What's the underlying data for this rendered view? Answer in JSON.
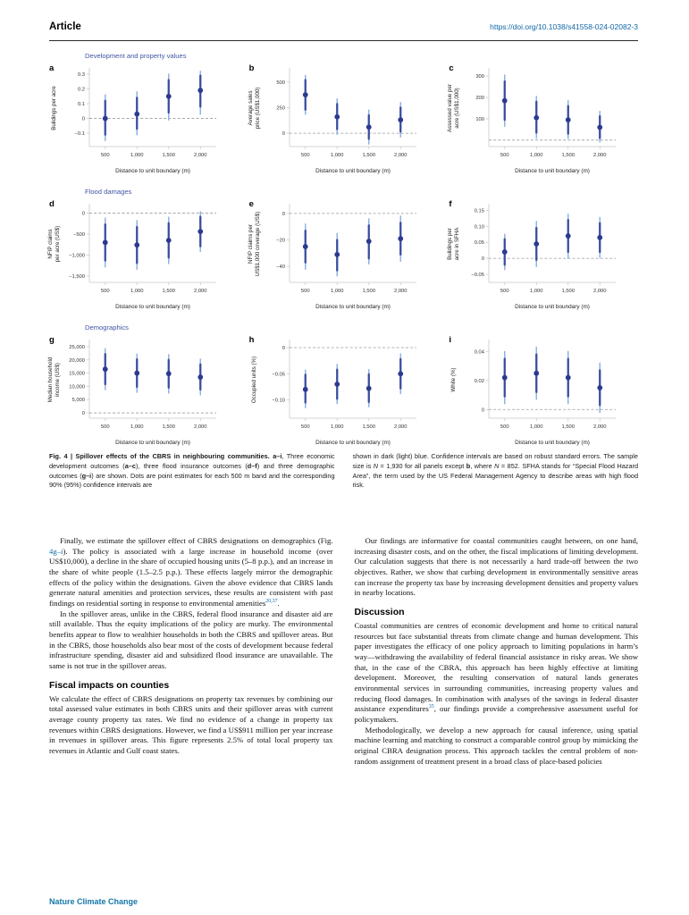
{
  "header": {
    "article_label": "Article",
    "doi": "https://doi.org/10.1038/s41558-024-02082-3"
  },
  "colors": {
    "dot": "#2b3a8f",
    "ci90": "#3a4d9f",
    "ci95": "#8fb3e2",
    "zero_line": "#9a9a9a",
    "axis": "#c9c9c9",
    "tick_text": "#333333",
    "label_text": "#222222",
    "group_title": "#4255a4",
    "link": "#1267a8",
    "footer": "#1578a8"
  },
  "figure": {
    "groups": [
      {
        "title": "Development and property values"
      },
      {
        "title": "Flood damages"
      },
      {
        "title": "Demographics"
      }
    ],
    "caption_left": {
      "lead": "Fig. 4 | Spillover effects of the CBRS in neighbouring communities. ",
      "b1": "a–i",
      "t1": ", Three economic development outcomes (",
      "b2": "a–c",
      "t2": "), three flood insurance outcomes (",
      "b3": "d–f",
      "t3": ") and three demographic outcomes (",
      "b4": "g–i",
      "t4": ") are shown. Dots are point estimates for each 500 m band and the corresponding 90% (95%) confidence intervals are"
    },
    "caption_right": {
      "t1": "shown in dark (light) blue. Confidence intervals are based on robust standard errors. The sample size is ",
      "i1": "N",
      "t2": " = 1,930 for all panels except ",
      "b1": "b",
      "t3": ", where ",
      "i2": "N",
      "t4": " = 852. SFHA stands for “Special Flood Hazard Area”, the term used by the US Federal Management Agency to describe areas with high flood risk."
    }
  },
  "chart_data": [
    {
      "panel": "a",
      "group": "Development and property values",
      "type": "scatter",
      "x": [
        500,
        1000,
        1500,
        2000
      ],
      "x_tick_labels": [
        "500",
        "1,000",
        "1,500",
        "2,000"
      ],
      "xlabel": "Distance to unit boundary (m)",
      "ylabel": [
        "Buildings per acre"
      ],
      "ylim": [
        -0.19,
        0.33
      ],
      "yticks": [
        -0.1,
        0,
        0.1,
        0.2,
        0.3
      ],
      "ytick_labels": [
        "−0.1",
        "0",
        "0.1",
        "0.2",
        "0.3"
      ],
      "estimates": [
        0.0,
        0.03,
        0.15,
        0.19
      ],
      "ci90": [
        [
          -0.11,
          0.12
        ],
        [
          -0.07,
          0.14
        ],
        [
          0.04,
          0.26
        ],
        [
          0.08,
          0.29
        ]
      ],
      "ci95": [
        [
          -0.15,
          0.16
        ],
        [
          -0.11,
          0.18
        ],
        [
          -0.01,
          0.3
        ],
        [
          0.03,
          0.32
        ]
      ],
      "zero_line": true
    },
    {
      "panel": "b",
      "group": "Development and property values",
      "type": "scatter",
      "x": [
        500,
        1000,
        1500,
        2000
      ],
      "x_tick_labels": [
        "500",
        "1,000",
        "1,500",
        "2,000"
      ],
      "xlabel": "Distance to unit boundary (m)",
      "ylabel": [
        "Average sales",
        "price (US$1,000)"
      ],
      "ylim": [
        -130,
        620
      ],
      "yticks": [
        0,
        250,
        500
      ],
      "ytick_labels": [
        "0",
        "250",
        "500"
      ],
      "estimates": [
        375,
        160,
        60,
        130
      ],
      "ci90": [
        [
          230,
          520
        ],
        [
          40,
          285
        ],
        [
          -55,
          175
        ],
        [
          15,
          250
        ]
      ],
      "ci95": [
        [
          185,
          565
        ],
        [
          -10,
          335
        ],
        [
          -105,
          225
        ],
        [
          -35,
          300
        ]
      ],
      "zero_line": true
    },
    {
      "panel": "c",
      "group": "Development and property values",
      "type": "scatter",
      "x": [
        500,
        1000,
        1500,
        2000
      ],
      "x_tick_labels": [
        "500",
        "1,000",
        "1,500",
        "2,000"
      ],
      "xlabel": "Distance to unit boundary (m)",
      "ylabel": [
        "Assessed value per",
        "acre (US$1,000)"
      ],
      "ylim": [
        -30,
        330
      ],
      "yticks": [
        100,
        200,
        300
      ],
      "ytick_labels": [
        "100",
        "200",
        "300"
      ],
      "estimates": [
        185,
        105,
        95,
        60
      ],
      "ci90": [
        [
          95,
          275
        ],
        [
          35,
          180
        ],
        [
          30,
          160
        ],
        [
          10,
          112
        ]
      ],
      "ci95": [
        [
          65,
          305
        ],
        [
          10,
          205
        ],
        [
          8,
          185
        ],
        [
          -8,
          135
        ]
      ],
      "zero_line": true
    },
    {
      "panel": "d",
      "group": "Flood damages",
      "type": "scatter",
      "x": [
        500,
        1000,
        1500,
        2000
      ],
      "x_tick_labels": [
        "500",
        "1,000",
        "1,500",
        "2,000"
      ],
      "xlabel": "Distance to unit boundary (m)",
      "ylabel": [
        "NFIP claims",
        "per acre (US$)"
      ],
      "ylim": [
        -1650,
        180
      ],
      "yticks": [
        0,
        -500,
        -1000,
        -1500
      ],
      "ytick_labels": [
        "0",
        "−500",
        "−1,000",
        "−1,500"
      ],
      "estimates": [
        -700,
        -760,
        -650,
        -440
      ],
      "ci90": [
        [
          -1130,
          -270
        ],
        [
          -1190,
          -330
        ],
        [
          -1060,
          -240
        ],
        [
          -790,
          -90
        ]
      ],
      "ci95": [
        [
          -1280,
          -120
        ],
        [
          -1340,
          -180
        ],
        [
          -1200,
          -100
        ],
        [
          -910,
          30
        ]
      ],
      "zero_line": true
    },
    {
      "panel": "e",
      "group": "Flood damages",
      "type": "scatter",
      "x": [
        500,
        1000,
        1500,
        2000
      ],
      "x_tick_labels": [
        "500",
        "1,000",
        "1,500",
        "2,000"
      ],
      "xlabel": "Distance to unit boundary (m)",
      "ylabel": [
        "NFIP claims per",
        "US$1,000 coverage (US$)"
      ],
      "ylim": [
        -52,
        6
      ],
      "yticks": [
        0,
        -20,
        -40
      ],
      "ytick_labels": [
        "0",
        "−20",
        "−40"
      ],
      "estimates": [
        -25,
        -31,
        -21,
        -19
      ],
      "ci90": [
        [
          -37,
          -13
        ],
        [
          -43,
          -20
        ],
        [
          -34,
          -9
        ],
        [
          -31,
          -7
        ]
      ],
      "ci95": [
        [
          -42,
          -8
        ],
        [
          -47,
          -15
        ],
        [
          -38,
          -4
        ],
        [
          -36,
          -2
        ]
      ],
      "zero_line": true
    },
    {
      "panel": "f",
      "group": "Flood damages",
      "type": "scatter",
      "x": [
        500,
        1000,
        1500,
        2000
      ],
      "x_tick_labels": [
        "500",
        "1,000",
        "1,500",
        "2,000"
      ],
      "xlabel": "Distance to unit boundary (m)",
      "ylabel": [
        "Buildings per",
        "acre in SFHA"
      ],
      "ylim": [
        -0.075,
        0.165
      ],
      "yticks": [
        -0.05,
        0,
        0.05,
        0.1,
        0.15
      ],
      "ytick_labels": [
        "−0.05",
        "0",
        "0.05",
        "0.10",
        "0.15"
      ],
      "estimates": [
        0.02,
        0.045,
        0.07,
        0.065
      ],
      "ci90": [
        [
          -0.02,
          0.06
        ],
        [
          -0.005,
          0.095
        ],
        [
          0.02,
          0.12
        ],
        [
          0.02,
          0.11
        ]
      ],
      "ci95": [
        [
          -0.035,
          0.075
        ],
        [
          -0.025,
          0.115
        ],
        [
          0.0,
          0.138
        ],
        [
          0.003,
          0.128
        ]
      ],
      "zero_line": true
    },
    {
      "panel": "g",
      "group": "Demographics",
      "type": "scatter",
      "x": [
        500,
        1000,
        1500,
        2000
      ],
      "x_tick_labels": [
        "500",
        "1,000",
        "1,500",
        "2,000"
      ],
      "xlabel": "Distance to unit boundary (m)",
      "ylabel": [
        "Median household",
        "income (US$)"
      ],
      "ylim": [
        -2000,
        27000
      ],
      "yticks": [
        0,
        5000,
        10000,
        15000,
        20000,
        25000
      ],
      "ytick_labels": [
        "0",
        "5,000",
        "10,000",
        "15,000",
        "20,000",
        "25,000"
      ],
      "estimates": [
        16500,
        15000,
        14800,
        13500
      ],
      "ci90": [
        [
          10800,
          22200
        ],
        [
          9800,
          20200
        ],
        [
          9500,
          20000
        ],
        [
          8800,
          18300
        ]
      ],
      "ci95": [
        [
          8800,
          24200
        ],
        [
          7800,
          22200
        ],
        [
          7500,
          22000
        ],
        [
          6800,
          20300
        ]
      ],
      "zero_line": true
    },
    {
      "panel": "h",
      "group": "Demographics",
      "type": "scatter",
      "x": [
        500,
        1000,
        1500,
        2000
      ],
      "x_tick_labels": [
        "500",
        "1,000",
        "1,500",
        "2,000"
      ],
      "xlabel": "Distance to unit boundary (m)",
      "ylabel": [
        "Occupied units (%)"
      ],
      "ylim": [
        -0.135,
        0.012
      ],
      "yticks": [
        0,
        -0.05,
        -0.1
      ],
      "ytick_labels": [
        "0",
        "−0.05",
        "−0.10"
      ],
      "estimates": [
        -0.08,
        -0.07,
        -0.078,
        -0.05
      ],
      "ci90": [
        [
          -0.105,
          -0.052
        ],
        [
          -0.098,
          -0.042
        ],
        [
          -0.104,
          -0.051
        ],
        [
          -0.078,
          -0.022
        ]
      ],
      "ci95": [
        [
          -0.115,
          -0.043
        ],
        [
          -0.107,
          -0.032
        ],
        [
          -0.113,
          -0.042
        ],
        [
          -0.088,
          -0.012
        ]
      ],
      "zero_line": true
    },
    {
      "panel": "i",
      "group": "Demographics",
      "type": "scatter",
      "x": [
        500,
        1000,
        1500,
        2000
      ],
      "x_tick_labels": [
        "500",
        "1,000",
        "1,500",
        "2,000"
      ],
      "xlabel": "Distance to unit boundary (m)",
      "ylabel": [
        "White (%)"
      ],
      "ylim": [
        -0.006,
        0.047
      ],
      "yticks": [
        0,
        0.02,
        0.04
      ],
      "ytick_labels": [
        "0",
        "0.02",
        "0.04"
      ],
      "estimates": [
        0.022,
        0.025,
        0.022,
        0.015
      ],
      "ci90": [
        [
          0.009,
          0.035
        ],
        [
          0.012,
          0.038
        ],
        [
          0.009,
          0.035
        ],
        [
          0.003,
          0.027
        ]
      ],
      "ci95": [
        [
          0.004,
          0.04
        ],
        [
          0.007,
          0.043
        ],
        [
          0.004,
          0.04
        ],
        [
          -0.002,
          0.032
        ]
      ],
      "zero_line": true
    }
  ],
  "body": {
    "left": {
      "p1": {
        "pre": "Finally, we estimate the spillover effect of CBRS designations on demographics (Fig. ",
        "link": "4g–i",
        "mid": "). The policy is associated with a large increase in household income (over US$10,000), a decline in the share of occupied housing units (5–8 p.p.), and an increase in the share of white people (1.5–2.5 p.p.). These effects largely mirror the demographic effects of the policy within the designations. Given the above evidence that CBRS lands generate natural amenities and protection services, these results are consistent with past findings on residential sorting in response to environmental amenities",
        "ref": "20,37",
        "post": "."
      },
      "p2": "In the spillover areas, unlike in the CBRS, federal flood insurance and disaster aid are still available. Thus the equity implications of the policy are murky. The environmental benefits appear to flow to wealthier households in both the CBRS and spillover areas. But in the CBRS, those households also bear most of the costs of development because federal infrastructure spending, disaster aid and subsidized flood insurance are unavailable. The same is not true in the spillover areas.",
      "heading": "Fiscal impacts on counties",
      "p3": "We calculate the effect of CBRS designations on property tax revenues by combining our total assessed value estimates in both CBRS units and their spillover areas with current average county property tax rates. We find no evidence of a change in property tax revenues within CBRS designations. However, we find a US$911 million per year increase in revenues in spillover areas. This figure represents 2.5% of total local property tax revenues in Atlantic and Gulf coast states."
    },
    "right": {
      "p1": "Our findings are informative for coastal communities caught between, on one hand, increasing disaster costs, and on the other, the fiscal implications of limiting development. Our calculation suggests that there is not necessarily a hard trade-off between the two objectives. Rather, we show that curbing development in environmentally sensitive areas can increase the property tax base by increasing development densities and property values in nearby locations.",
      "heading": "Discussion",
      "p2": {
        "pre": "Coastal communities are centres of economic development and home to critical natural resources but face substantial threats from climate change and human development. This paper investigates the efficacy of one policy approach to limiting populations in harm’s way—withdrawing the availability of federal financial assistance in risky areas. We show that, in the case of the CBRA, this approach has been highly effective at limiting development. Moreover, the resulting conservation of natural lands generates environmental services in surrounding communities, increasing property values and reducing flood damages. In combination with analyses of the savings in federal disaster assistance expenditures",
        "ref": "35",
        "post": ", our findings provide a comprehensive assessment useful for policymakers."
      },
      "p3": "Methodologically, we develop a new approach for causal inference, using spatial machine learning and matching to construct a comparable control group by mimicking the original CBRA designation process. This approach tackles the central problem of non-random assignment of treatment present in a broad class of place-based policies"
    }
  },
  "footer": {
    "journal": "Nature Climate Change"
  }
}
